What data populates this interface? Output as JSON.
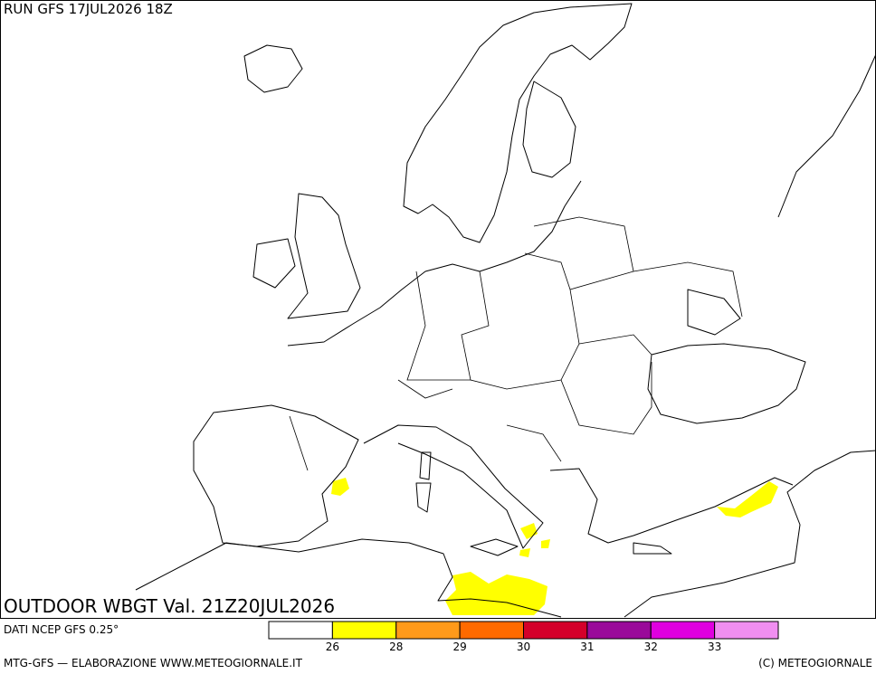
{
  "header": {
    "run": "RUN GFS 17JUL2026 18Z"
  },
  "map": {
    "title": "OUTDOOR WBGT Val. 21Z20JUL2026"
  },
  "legend": {
    "colors": [
      "#ffffff",
      "#ffff00",
      "#ff9a1a",
      "#ff6a00",
      "#d4002a",
      "#9a0a9a",
      "#e000e0",
      "#f08ef0"
    ],
    "ticks": [
      26,
      28,
      29,
      30,
      31,
      32,
      33
    ]
  },
  "footer": {
    "source": "DATI NCEP GFS 0.25°",
    "credit": "MTG-GFS — ELABORAZIONE WWW.METEOGIORNALE.IT",
    "copyright": "(C) METEOGIORNALE"
  }
}
